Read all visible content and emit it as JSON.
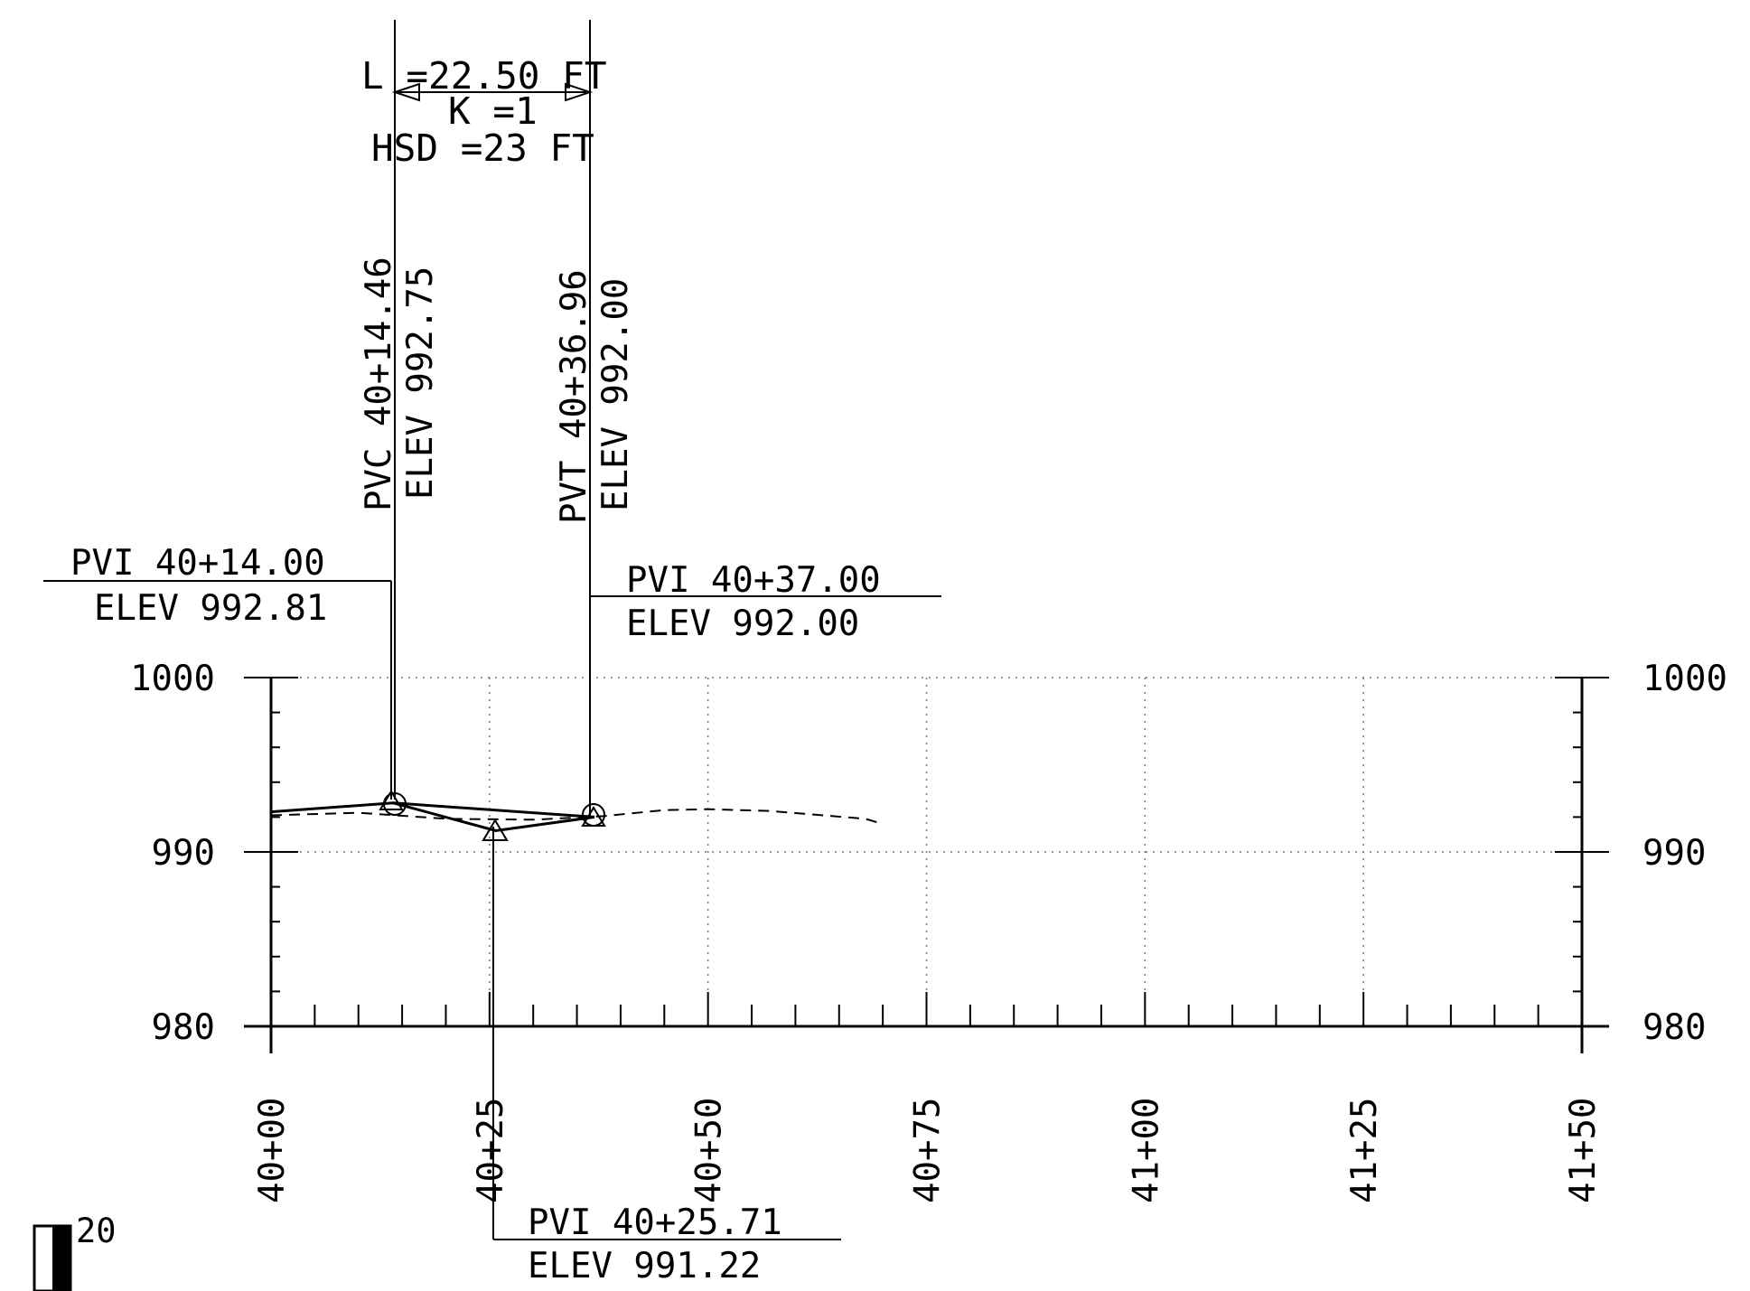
{
  "vertical_curve": {
    "length": "L =22.50 FT",
    "k": "K =1",
    "hsd": "HSD =23 FT"
  },
  "pvc": {
    "station": "PVC 40+14.46",
    "elev": "ELEV 992.75"
  },
  "pvt": {
    "station": "PVT 40+36.96",
    "elev": "ELEV 992.00"
  },
  "pvi_left": {
    "station": "PVI 40+14.00",
    "elev": "ELEV 992.81"
  },
  "pvi_right": {
    "station": "PVI 40+37.00",
    "elev": "ELEV 992.00"
  },
  "pvi_low": {
    "station": "PVI 40+25.71",
    "elev": "ELEV 991.22"
  },
  "scale_label": "20",
  "chart_data": {
    "type": "line",
    "y_ticks": [
      "1000",
      "990",
      "980"
    ],
    "x_ticks": [
      "40+00",
      "40+25",
      "40+50",
      "40+75",
      "41+00",
      "41+25",
      "41+50"
    ],
    "x_range_ft": [
      4000,
      4150
    ],
    "y_range_ft": [
      980,
      1000
    ],
    "grid": true,
    "series": [
      {
        "name": "",
        "style": "solid",
        "points": [
          [
            4000,
            992.3
          ],
          [
            4014.0,
            992.81
          ],
          [
            4037.0,
            992.0
          ]
        ]
      },
      {
        "name": "",
        "style": "solid",
        "points": [
          [
            4014.0,
            992.81
          ],
          [
            4025.71,
            991.22
          ],
          [
            4037.0,
            992.0
          ]
        ]
      },
      {
        "name": "",
        "style": "dashed",
        "points": [
          [
            4000,
            992.1
          ],
          [
            4010,
            992.25
          ],
          [
            4020,
            991.9
          ],
          [
            4030,
            991.85
          ],
          [
            4038,
            992.05
          ],
          [
            4045,
            992.4
          ],
          [
            4050,
            992.45
          ],
          [
            4057,
            992.35
          ],
          [
            4068,
            991.9
          ],
          [
            4070,
            991.6
          ]
        ]
      }
    ]
  }
}
